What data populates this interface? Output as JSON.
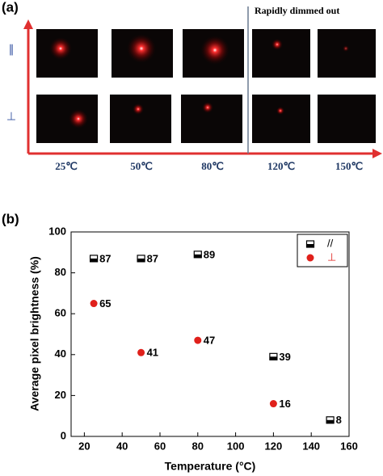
{
  "panel_a": {
    "label": "(a)",
    "note": "Rapidly dimmed out",
    "rows": [
      "∥",
      "⊥"
    ],
    "columns": [
      "25℃",
      "50℃",
      "80℃",
      "120℃",
      "150℃"
    ]
  },
  "chart_data": {
    "type": "scatter",
    "label": "(b)",
    "x_label": "Temperature (°C)",
    "y_label": "Average pixel brightness (%)",
    "series": [
      {
        "name": "//",
        "color": "#000000",
        "marker": "square",
        "x": [
          25,
          50,
          80,
          120,
          150
        ],
        "values": [
          87,
          87,
          89,
          39,
          8
        ]
      },
      {
        "name": "⊥",
        "color": "#e0201b",
        "marker": "circle",
        "x": [
          25,
          50,
          80,
          120
        ],
        "values": [
          65,
          41,
          47,
          16
        ]
      }
    ],
    "xlim": [
      13,
      160
    ],
    "xticks": [
      20,
      40,
      60,
      80,
      100,
      120,
      140,
      160
    ],
    "ylim": [
      0,
      100
    ],
    "yticks": [
      0,
      20,
      40,
      60,
      80,
      100
    ],
    "legend": "upper right"
  }
}
